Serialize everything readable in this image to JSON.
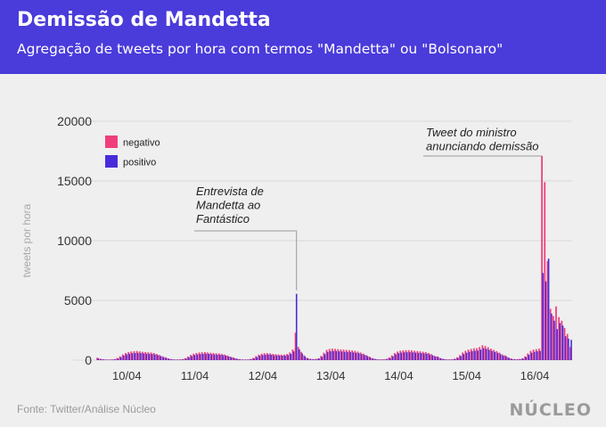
{
  "header": {
    "title": "Demissão de Mandetta",
    "subtitle": "Agregação de tweets por hora com termos \"Mandetta\" ou \"Bolsonaro\""
  },
  "footer": {
    "source": "Fonte: Twitter/Análise Núcleo",
    "logo": "NÚCLEO"
  },
  "colors": {
    "header_bg": "#4a3bdb",
    "negativo": "#f03e7c",
    "positivo": "#4a2bdb",
    "annotation_line": "#999999"
  },
  "chart_data": {
    "type": "bar",
    "ylabel": "tweets por hora",
    "ylim": [
      0,
      20000
    ],
    "yticks": [
      0,
      5000,
      10000,
      15000,
      20000
    ],
    "ytick_labels": [
      "0",
      "5000",
      "10000",
      "15000",
      "20000"
    ],
    "xtick_labels": [
      "10/04",
      "11/04",
      "12/04",
      "13/04",
      "14/04",
      "15/04",
      "16/04"
    ],
    "grid": true,
    "legend_position": "top-left",
    "series": [
      {
        "name": "negativo",
        "color": "#f03e7c"
      },
      {
        "name": "positivo",
        "color": "#4a2bdb"
      }
    ],
    "days": [
      {
        "label": "10/04",
        "negativo": [
          200,
          120,
          80,
          60,
          50,
          60,
          90,
          180,
          320,
          480,
          600,
          680,
          720,
          750,
          770,
          740,
          700,
          680,
          660,
          640,
          600,
          520,
          430,
          330
        ],
        "positivo": [
          150,
          90,
          60,
          45,
          40,
          45,
          70,
          140,
          250,
          380,
          480,
          540,
          580,
          600,
          610,
          590,
          560,
          540,
          530,
          510,
          480,
          420,
          340,
          260
        ]
      },
      {
        "label": "11/04",
        "negativo": [
          250,
          150,
          90,
          60,
          55,
          60,
          90,
          170,
          300,
          440,
          540,
          600,
          640,
          660,
          680,
          650,
          620,
          600,
          580,
          560,
          530,
          470,
          390,
          300
        ],
        "positivo": [
          200,
          120,
          70,
          50,
          45,
          50,
          70,
          140,
          240,
          350,
          430,
          480,
          510,
          530,
          540,
          520,
          500,
          480,
          460,
          450,
          420,
          380,
          310,
          240
        ]
      },
      {
        "label": "12/04",
        "negativo": [
          230,
          140,
          90,
          60,
          55,
          60,
          100,
          190,
          330,
          460,
          540,
          580,
          590,
          570,
          520,
          500,
          480,
          460,
          470,
          520,
          640,
          900,
          2300,
          1100
        ],
        "positivo": [
          180,
          110,
          70,
          50,
          45,
          50,
          80,
          150,
          260,
          370,
          430,
          460,
          470,
          460,
          420,
          400,
          380,
          370,
          380,
          420,
          520,
          740,
          5550,
          900
        ]
      },
      {
        "label": "13/04",
        "negativo": [
          700,
          400,
          200,
          120,
          90,
          100,
          160,
          350,
          620,
          860,
          940,
          960,
          950,
          920,
          900,
          880,
          860,
          840,
          820,
          780,
          720,
          640,
          540,
          420
        ],
        "positivo": [
          560,
          320,
          160,
          95,
          70,
          80,
          130,
          280,
          500,
          690,
          750,
          770,
          760,
          740,
          720,
          700,
          690,
          670,
          650,
          620,
          580,
          510,
          430,
          340
        ]
      },
      {
        "label": "14/04",
        "negativo": [
          300,
          180,
          110,
          70,
          60,
          70,
          110,
          220,
          400,
          600,
          720,
          790,
          820,
          830,
          840,
          820,
          790,
          760,
          740,
          710,
          670,
          600,
          500,
          380
        ],
        "positivo": [
          240,
          140,
          90,
          55,
          50,
          55,
          90,
          180,
          320,
          480,
          580,
          630,
          660,
          660,
          670,
          650,
          630,
          610,
          590,
          570,
          540,
          480,
          400,
          300
        ]
      },
      {
        "label": "15/04",
        "negativo": [
          320,
          190,
          110,
          70,
          60,
          70,
          120,
          240,
          420,
          640,
          780,
          880,
          940,
          990,
          1000,
          1100,
          1250,
          1180,
          1080,
          960,
          860,
          760,
          630,
          480
        ],
        "positivo": [
          260,
          150,
          90,
          55,
          50,
          55,
          95,
          190,
          340,
          510,
          620,
          700,
          750,
          790,
          800,
          880,
          1000,
          940,
          860,
          770,
          690,
          610,
          500,
          380
        ]
      },
      {
        "label": "16/04",
        "negativo": [
          400,
          240,
          140,
          90,
          80,
          100,
          160,
          320,
          560,
          780,
          880,
          920,
          960,
          17100,
          14900,
          8300,
          4300,
          3700,
          4500,
          3600,
          3300,
          2700,
          2200,
          1100
        ],
        "positivo": [
          320,
          190,
          110,
          70,
          65,
          80,
          130,
          260,
          450,
          620,
          700,
          740,
          770,
          7300,
          6600,
          8500,
          3900,
          3300,
          2600,
          3100,
          2900,
          2000,
          1800,
          1700
        ]
      }
    ],
    "annotations": [
      {
        "text": [
          "Entrevista de",
          "Mandetta ao",
          "Fantástico"
        ],
        "day": 2,
        "hour": 22,
        "value": 5550
      },
      {
        "text": [
          "Tweet do ministro",
          "anunciando demissão"
        ],
        "day": 6,
        "hour": 13,
        "value": 17100
      }
    ]
  }
}
